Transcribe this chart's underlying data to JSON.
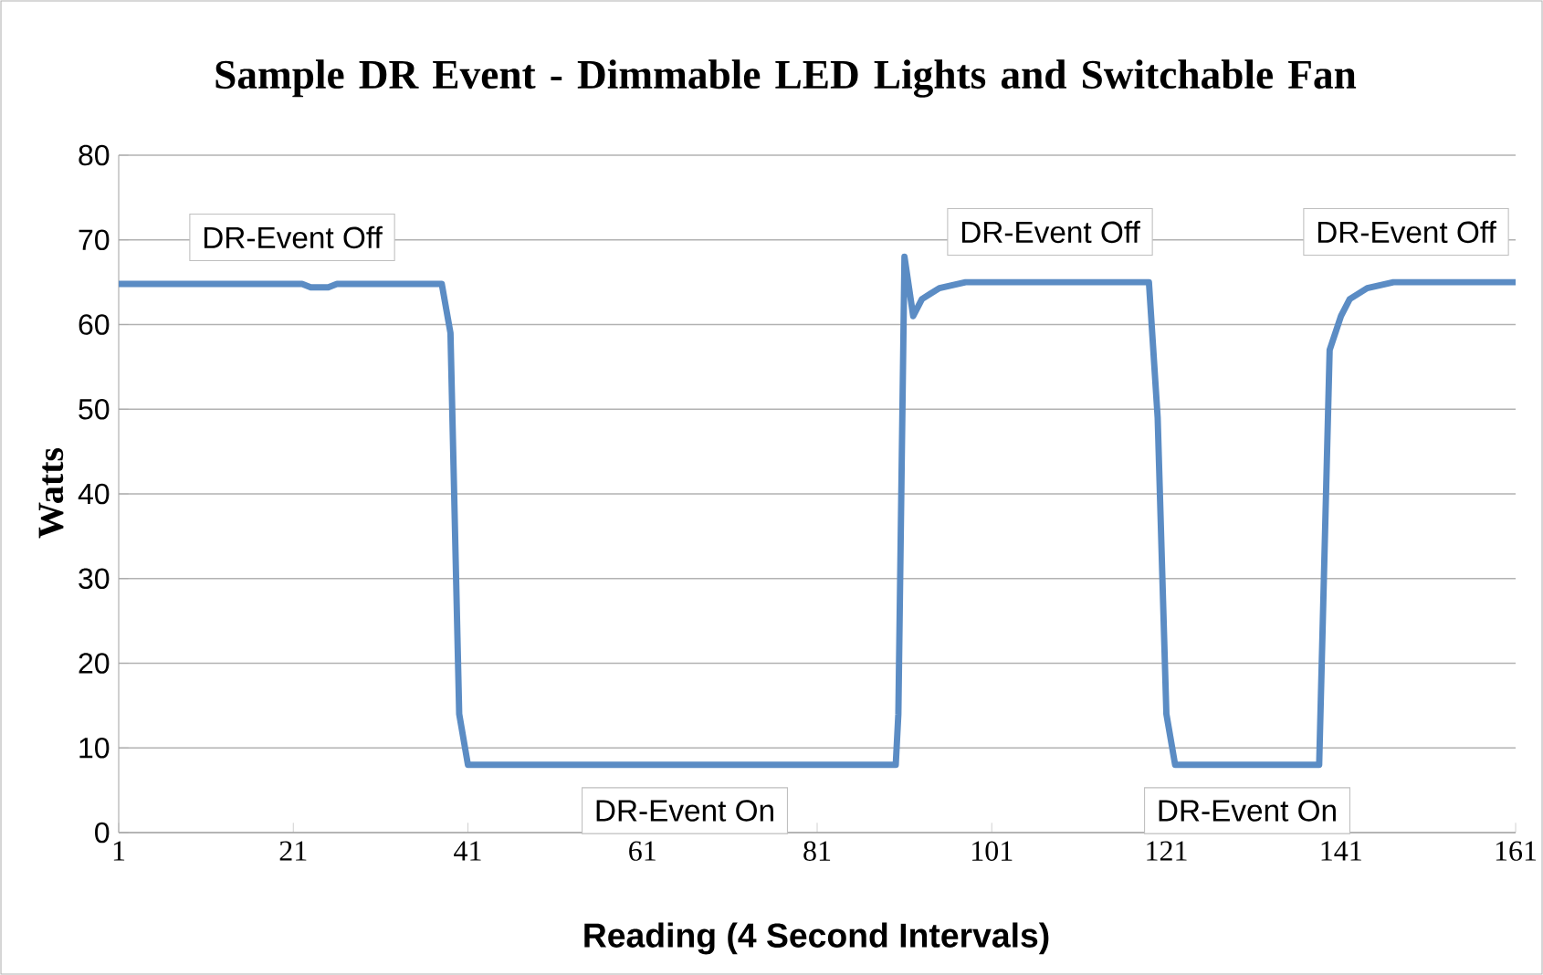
{
  "chart_data": {
    "type": "line",
    "title": "Sample DR Event - Dimmable LED Lights and Switchable Fan",
    "xlabel": "Reading (4 Second Intervals)",
    "ylabel": "Watts",
    "x": [
      1,
      10,
      20,
      22,
      23,
      25,
      26,
      30,
      38,
      39,
      40,
      41,
      60,
      80,
      90,
      90.3,
      91,
      92,
      93,
      95,
      98,
      110,
      119,
      120,
      121,
      122,
      130,
      138.5,
      139.7,
      141,
      142,
      144,
      147,
      161
    ],
    "series": [
      {
        "color": "#5b8cc4",
        "values": [
          64.8,
          64.8,
          64.8,
          64.8,
          64.4,
          64.4,
          64.8,
          64.8,
          64.8,
          59,
          14,
          8,
          8,
          8,
          8,
          14,
          68,
          61,
          63,
          64.3,
          65,
          65,
          65,
          49,
          14,
          8,
          8,
          8,
          57,
          61,
          63,
          64.3,
          65,
          65
        ]
      }
    ],
    "xlim": [
      1,
      161
    ],
    "xticks": [
      1,
      21,
      41,
      61,
      81,
      101,
      121,
      141,
      161
    ],
    "ylim": [
      0,
      80
    ],
    "yticks": [
      0,
      10,
      20,
      30,
      40,
      50,
      60,
      70,
      80
    ],
    "grid": "y",
    "line_style": "solid",
    "marker": "none",
    "annotations": [
      "DR-Event Off",
      "DR-Event On",
      "DR-Event Off",
      "DR-Event On",
      "DR-Event Off"
    ]
  }
}
